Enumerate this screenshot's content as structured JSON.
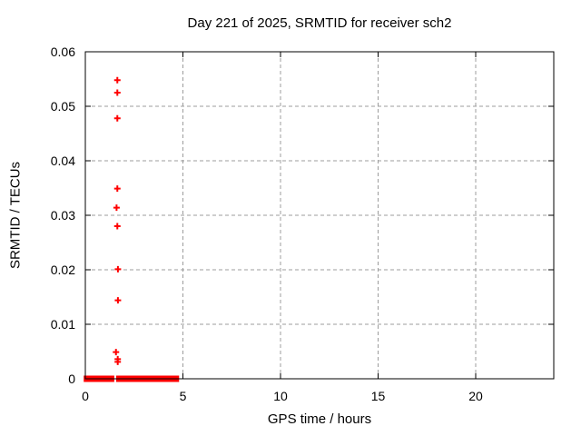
{
  "page": {
    "background": "#ffffff"
  },
  "chart_data": {
    "type": "scatter",
    "title": "Day 221 of 2025, SRMTID for receiver sch2",
    "xlabel": "GPS time / hours",
    "ylabel": "SRMTID / TECUs",
    "xlim": [
      0,
      24
    ],
    "ylim": [
      0,
      0.06
    ],
    "xticks": [
      0,
      5,
      10,
      15,
      20
    ],
    "xtick_labels": [
      "0",
      "5",
      "10",
      "15",
      "20"
    ],
    "yticks": [
      0,
      0.01,
      0.02,
      0.03,
      0.04,
      0.05,
      0.06
    ],
    "ytick_labels": [
      "0",
      "0.01",
      "0.02",
      "0.03",
      "0.04",
      "0.05",
      "0.06"
    ],
    "grid": true,
    "legend": "none",
    "marker": "plus",
    "colors": {
      "marker": "#ff0000",
      "grid": "#9c9c9c",
      "axis": "#000000",
      "text": "#000000"
    },
    "series": [
      {
        "name": "SRMTID",
        "color": "#ff0000",
        "points": [
          [
            1.64,
            0.0548
          ],
          [
            1.64,
            0.0525
          ],
          [
            1.64,
            0.0478
          ],
          [
            1.64,
            0.0349
          ],
          [
            1.6,
            0.0314
          ],
          [
            1.64,
            0.028
          ],
          [
            1.67,
            0.0201
          ],
          [
            1.67,
            0.0144
          ],
          [
            1.57,
            0.0049
          ],
          [
            1.66,
            0.0036
          ],
          [
            1.66,
            0.0031
          ]
        ],
        "zero_value_segments_hours": [
          [
            0.08,
            1.32
          ],
          [
            1.74,
            4.64
          ]
        ]
      }
    ]
  }
}
